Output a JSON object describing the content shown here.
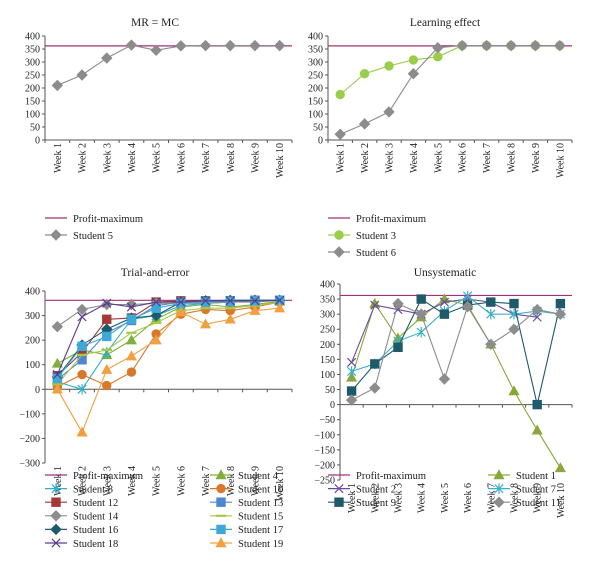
{
  "chart_data": [
    {
      "type": "line",
      "title": "MR = MC",
      "categories": [
        "Week 1",
        "Week 2",
        "Week 3",
        "Week 4",
        "Week 5",
        "Week 6",
        "Week 7",
        "Week 8",
        "Week 9",
        "Week 10"
      ],
      "ylim": [
        0,
        400
      ],
      "yticks": [
        0,
        50,
        100,
        150,
        200,
        250,
        300,
        350,
        400
      ],
      "reference_line": {
        "name": "Profit-maximum",
        "value": 362,
        "color": "#a0307a"
      },
      "series": [
        {
          "name": "Student 5",
          "color": "#8c8c8c",
          "marker": "diamond",
          "values": [
            210,
            250,
            315,
            365,
            345,
            362,
            363,
            363,
            363,
            363
          ]
        }
      ],
      "legend_position": "bottom",
      "grid": false
    },
    {
      "type": "line",
      "title": "Learning effect",
      "categories": [
        "Week 1",
        "Week 2",
        "Week 3",
        "Week 4",
        "Week 5",
        "Week 6",
        "Week 7",
        "Week 8",
        "Week 9",
        "Week 10"
      ],
      "ylim": [
        0,
        400
      ],
      "yticks": [
        0,
        50,
        100,
        150,
        200,
        250,
        300,
        350,
        400
      ],
      "reference_line": {
        "name": "Profit-maximum",
        "value": 362,
        "color": "#a0307a"
      },
      "series": [
        {
          "name": "Student 3",
          "color": "#9acd4a",
          "marker": "circle",
          "values": [
            175,
            255,
            285,
            308,
            320,
            363,
            363,
            363,
            363,
            363
          ]
        },
        {
          "name": "Student 6",
          "color": "#8c8c8c",
          "marker": "diamond",
          "values": [
            22,
            62,
            108,
            255,
            355,
            363,
            363,
            363,
            363,
            363
          ]
        }
      ],
      "legend_position": "bottom",
      "grid": false
    },
    {
      "type": "line",
      "title": "Trial-and-error",
      "categories": [
        "Week 1",
        "Week 2",
        "Week 3",
        "Week 4",
        "Week 5",
        "Week 6",
        "Week 7",
        "Week 8",
        "Week 9",
        "Week 10"
      ],
      "ylim": [
        -300,
        400
      ],
      "yticks": [
        -300,
        -200,
        -100,
        0,
        100,
        200,
        300,
        400
      ],
      "reference_line": {
        "name": "Profit-maximum",
        "value": 362,
        "color": "#a0307a"
      },
      "series": [
        {
          "name": "Student 4",
          "color": "#7fae3c",
          "marker": "triangle",
          "values": [
            105,
            160,
            140,
            200,
            285,
            335,
            345,
            335,
            345,
            358
          ]
        },
        {
          "name": "Student 8",
          "color": "#2fb0c8",
          "marker": "star",
          "values": [
            30,
            0,
            150,
            285,
            300,
            340,
            350,
            355,
            360,
            362
          ]
        },
        {
          "name": "Student 10",
          "color": "#d7782a",
          "marker": "circle",
          "values": [
            10,
            60,
            15,
            70,
            225,
            305,
            325,
            320,
            335,
            355
          ]
        },
        {
          "name": "Student 12",
          "color": "#a33a38",
          "marker": "square",
          "values": [
            55,
            150,
            285,
            290,
            355,
            360,
            360,
            360,
            362,
            362
          ]
        },
        {
          "name": "Student 13",
          "color": "#4f86d0",
          "marker": "square",
          "values": [
            40,
            120,
            230,
            280,
            340,
            355,
            358,
            360,
            362,
            362
          ]
        },
        {
          "name": "Student 14",
          "color": "#8c8c8c",
          "marker": "diamond",
          "values": [
            255,
            325,
            345,
            345,
            350,
            350,
            350,
            355,
            355,
            362
          ]
        },
        {
          "name": "Student 15",
          "color": "#a8c84a",
          "marker": "dash",
          "values": [
            20,
            140,
            160,
            230,
            270,
            320,
            330,
            330,
            340,
            355
          ]
        },
        {
          "name": "Student 16",
          "color": "#1f5a6a",
          "marker": "diamond",
          "values": [
            50,
            180,
            245,
            290,
            300,
            355,
            360,
            362,
            362,
            362
          ]
        },
        {
          "name": "Student 17",
          "color": "#3fa8d8",
          "marker": "square",
          "values": [
            45,
            175,
            215,
            285,
            330,
            350,
            355,
            358,
            360,
            362
          ]
        },
        {
          "name": "Student 18",
          "color": "#5a3c8c",
          "marker": "x",
          "values": [
            60,
            295,
            350,
            335,
            355,
            355,
            360,
            360,
            360,
            362
          ]
        },
        {
          "name": "Student 19",
          "color": "#f0a040",
          "marker": "triangle",
          "values": [
            0,
            -175,
            80,
            135,
            200,
            315,
            265,
            285,
            320,
            330
          ]
        }
      ],
      "legend_position": "bottom",
      "grid": false
    },
    {
      "type": "line",
      "title": "Unsystematic",
      "categories": [
        "Week 1",
        "Week 2",
        "Week 3",
        "Week 4",
        "Week 5",
        "Week 6",
        "Week 7",
        "Week 8",
        "Week 9",
        "Week 10"
      ],
      "ylim": [
        -250,
        400
      ],
      "yticks": [
        -250,
        -200,
        -150,
        -100,
        -50,
        0,
        50,
        100,
        150,
        200,
        250,
        300,
        350,
        400
      ],
      "reference_line": {
        "name": "Profit-maximum",
        "value": 362,
        "color": "#a0307a"
      },
      "series": [
        {
          "name": "Student 1",
          "color": "#8aa83a",
          "marker": "triangle",
          "values": [
            90,
            335,
            220,
            290,
            350,
            330,
            200,
            45,
            -85,
            -210
          ]
        },
        {
          "name": "Student 2",
          "color": "#6a4c9c",
          "marker": "x",
          "values": [
            140,
            330,
            315,
            300,
            340,
            350,
            340,
            300,
            290,
            null
          ]
        },
        {
          "name": "Student 7",
          "color": "#3ab0c8",
          "marker": "star",
          "values": [
            110,
            135,
            210,
            240,
            310,
            360,
            300,
            300,
            310,
            300
          ]
        },
        {
          "name": "Student 9",
          "color": "#1f5a6a",
          "marker": "square",
          "values": [
            45,
            135,
            190,
            350,
            300,
            330,
            340,
            335,
            0,
            335
          ]
        },
        {
          "name": "Student 11",
          "color": "#8c8c8c",
          "marker": "diamond",
          "values": [
            15,
            55,
            335,
            300,
            85,
            325,
            200,
            250,
            315,
            300
          ]
        }
      ],
      "legend_position": "bottom",
      "grid": false
    }
  ]
}
